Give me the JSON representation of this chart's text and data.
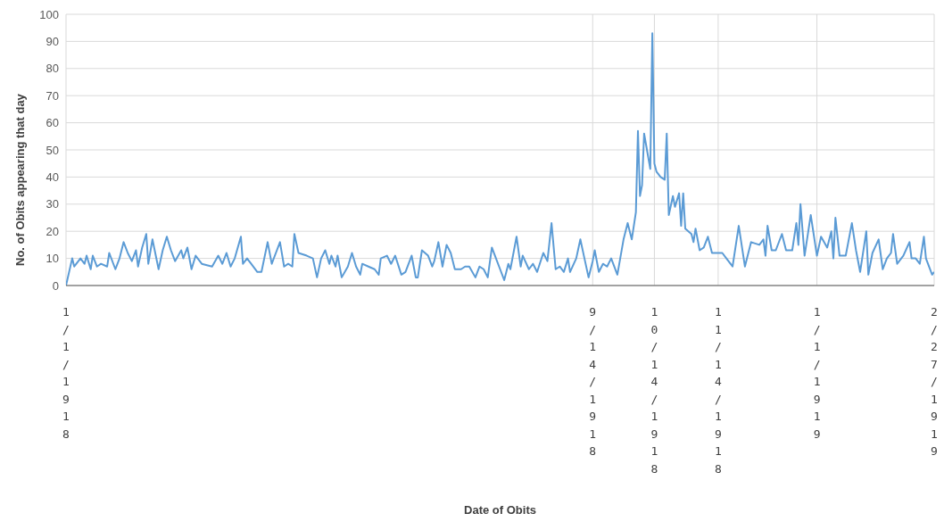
{
  "chart_data": {
    "type": "line",
    "xlabel": "Date of Obits",
    "ylabel": "No. of Obits appearing that day",
    "x": [
      "1918-01-01",
      "1918-01-04",
      "1918-01-05",
      "1918-01-08",
      "1918-01-10",
      "1918-01-11",
      "1918-01-13",
      "1918-01-14",
      "1918-01-16",
      "1918-01-18",
      "1918-01-21",
      "1918-01-22",
      "1918-01-25",
      "1918-01-27",
      "1918-01-29",
      "1918-01-31",
      "1918-02-02",
      "1918-02-04",
      "1918-02-05",
      "1918-02-07",
      "1918-02-09",
      "1918-02-10",
      "1918-02-12",
      "1918-02-15",
      "1918-02-17",
      "1918-02-19",
      "1918-02-21",
      "1918-02-23",
      "1918-02-26",
      "1918-02-27",
      "1918-03-01",
      "1918-03-03",
      "1918-03-05",
      "1918-03-08",
      "1918-03-13",
      "1918-03-16",
      "1918-03-18",
      "1918-03-20",
      "1918-03-22",
      "1918-03-24",
      "1918-03-27",
      "1918-03-28",
      "1918-03-30",
      "1918-04-01",
      "1918-04-04",
      "1918-04-06",
      "1918-04-09",
      "1918-04-11",
      "1918-04-13",
      "1918-04-15",
      "1918-04-17",
      "1918-04-19",
      "1918-04-21",
      "1918-04-22",
      "1918-04-24",
      "1918-04-28",
      "1918-05-01",
      "1918-05-03",
      "1918-05-05",
      "1918-05-07",
      "1918-05-09",
      "1918-05-10",
      "1918-05-12",
      "1918-05-13",
      "1918-05-15",
      "1918-05-18",
      "1918-05-20",
      "1918-05-22",
      "1918-05-24",
      "1918-05-25",
      "1918-05-28",
      "1918-05-31",
      "1918-06-02",
      "1918-06-03",
      "1918-06-06",
      "1918-06-08",
      "1918-06-10",
      "1918-06-13",
      "1918-06-15",
      "1918-06-18",
      "1918-06-20",
      "1918-06-21",
      "1918-06-23",
      "1918-06-26",
      "1918-06-28",
      "1918-06-29",
      "1918-07-01",
      "1918-07-03",
      "1918-07-05",
      "1918-07-07",
      "1918-07-09",
      "1918-07-12",
      "1918-07-14",
      "1918-07-16",
      "1918-07-19",
      "1918-07-21",
      "1918-07-23",
      "1918-07-25",
      "1918-07-27",
      "1918-07-29",
      "1918-07-31",
      "1918-08-02",
      "1918-08-04",
      "1918-08-05",
      "1918-08-08",
      "1918-08-10",
      "1918-08-11",
      "1918-08-14",
      "1918-08-16",
      "1918-08-18",
      "1918-08-21",
      "1918-08-23",
      "1918-08-25",
      "1918-08-27",
      "1918-08-29",
      "1918-08-31",
      "1918-09-02",
      "1918-09-03",
      "1918-09-06",
      "1918-09-08",
      "1918-09-10",
      "1918-09-12",
      "1918-09-14",
      "1918-09-15",
      "1918-09-17",
      "1918-09-19",
      "1918-09-21",
      "1918-09-23",
      "1918-09-26",
      "1918-09-29",
      "1918-10-01",
      "1918-10-03",
      "1918-10-05",
      "1918-10-06",
      "1918-10-07",
      "1918-10-08",
      "1918-10-09",
      "1918-10-12",
      "1918-10-13",
      "1918-10-14",
      "1918-10-15",
      "1918-10-17",
      "1918-10-19",
      "1918-10-20",
      "1918-10-21",
      "1918-10-23",
      "1918-10-24",
      "1918-10-26",
      "1918-10-27",
      "1918-10-28",
      "1918-10-29",
      "1918-11-01",
      "1918-11-02",
      "1918-11-03",
      "1918-11-05",
      "1918-11-07",
      "1918-11-09",
      "1918-11-11",
      "1918-11-14",
      "1918-11-16",
      "1918-11-18",
      "1918-11-21",
      "1918-11-24",
      "1918-11-27",
      "1918-11-30",
      "1918-12-04",
      "1918-12-06",
      "1918-12-07",
      "1918-12-08",
      "1918-12-10",
      "1918-12-12",
      "1918-12-15",
      "1918-12-17",
      "1918-12-20",
      "1918-12-22",
      "1918-12-23",
      "1918-12-24",
      "1918-12-26",
      "1918-12-29",
      "1919-01-01",
      "1919-01-03",
      "1919-01-06",
      "1919-01-08",
      "1919-01-09",
      "1919-01-10",
      "1919-01-12",
      "1919-01-15",
      "1919-01-18",
      "1919-01-20",
      "1919-01-22",
      "1919-01-25",
      "1919-01-26",
      "1919-01-28",
      "1919-01-31",
      "1919-02-02",
      "1919-02-04",
      "1919-02-06",
      "1919-02-07",
      "1919-02-09",
      "1919-02-12",
      "1919-02-15",
      "1919-02-16",
      "1919-02-18",
      "1919-02-20",
      "1919-02-22",
      "1919-02-23",
      "1919-02-26",
      "1919-02-27"
    ],
    "series": [
      {
        "color": "#5b9bd5",
        "values": [
          0,
          10,
          7,
          10,
          8,
          11,
          6,
          11,
          7,
          8,
          7,
          12,
          6,
          10,
          16,
          12,
          9,
          13,
          7,
          14,
          19,
          8,
          17,
          6,
          13,
          18,
          13,
          9,
          13,
          10,
          14,
          6,
          11,
          8,
          7,
          11,
          8,
          12,
          7,
          10,
          18,
          8,
          10,
          8,
          5,
          5,
          16,
          8,
          12,
          16,
          7,
          8,
          7,
          19,
          12,
          11,
          10,
          3,
          10,
          13,
          8,
          11,
          7,
          11,
          3,
          7,
          12,
          7,
          4,
          8,
          7,
          6,
          4,
          10,
          11,
          8,
          11,
          4,
          5,
          11,
          3,
          3,
          13,
          11,
          7,
          9,
          16,
          7,
          15,
          12,
          6,
          6,
          7,
          7,
          3,
          7,
          6,
          3,
          14,
          10,
          6,
          2,
          8,
          6,
          18,
          7,
          11,
          6,
          8,
          5,
          12,
          9,
          23,
          6,
          7,
          5,
          10,
          5,
          10,
          17,
          10,
          3,
          9,
          13,
          5,
          8,
          7,
          10,
          4,
          17,
          23,
          17,
          27,
          57,
          33,
          37,
          56,
          43,
          93,
          45,
          42,
          40,
          39,
          56,
          26,
          33,
          29,
          34,
          22,
          34,
          21,
          19,
          16,
          21,
          13,
          14,
          18,
          12,
          12,
          12,
          10,
          7,
          22,
          7,
          16,
          15,
          17,
          11,
          22,
          13,
          13,
          19,
          13,
          13,
          23,
          15,
          30,
          11,
          26,
          11,
          18,
          14,
          20,
          10,
          25,
          11,
          11,
          23,
          13,
          5,
          20,
          4,
          12,
          17,
          6,
          10,
          12,
          19,
          8,
          11,
          16,
          10,
          10,
          8,
          18,
          10,
          4,
          5
        ]
      }
    ],
    "xlim": [
      "1918-01-01",
      "1919-02-27"
    ],
    "xticks": [
      {
        "value": "1918-01-01",
        "label": "1/1/1918"
      },
      {
        "value": "1918-09-14",
        "label": "9/14/1918"
      },
      {
        "value": "1918-10-14",
        "label": "10/14/1918"
      },
      {
        "value": "1918-11-14",
        "label": "11/14/1918"
      },
      {
        "value": "1919-01-01",
        "label": "1/1/1919"
      },
      {
        "value": "1919-02-27",
        "label": "2/27/1919"
      }
    ],
    "ylim": [
      0,
      100
    ],
    "yticks": [
      0,
      10,
      20,
      30,
      40,
      50,
      60,
      70,
      80,
      90,
      100
    ],
    "grid": true,
    "marker": "none",
    "line_style": "solid"
  }
}
